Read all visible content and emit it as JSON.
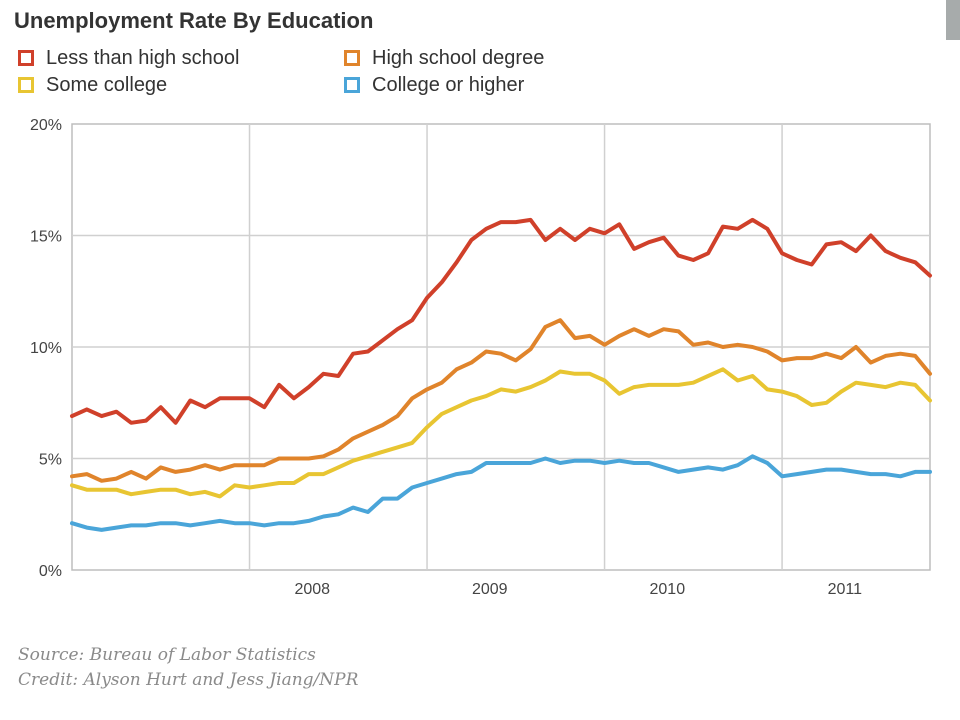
{
  "chart_data": {
    "type": "line",
    "title": "Unemployment Rate By Education",
    "xlabel": "",
    "ylabel": "",
    "x_start": "2007-01",
    "x_end": "2011-11",
    "x_frequency": "monthly",
    "x_ticks": [
      "2008",
      "2009",
      "2010",
      "2011"
    ],
    "y_ticks": [
      "0%",
      "5%",
      "10%",
      "15%",
      "20%"
    ],
    "ylim": [
      0,
      20
    ],
    "grid": true,
    "legend_placement": "top-left",
    "series": [
      {
        "name": "Less than high school",
        "color": "#d0402a",
        "values": [
          6.9,
          7.2,
          6.9,
          7.1,
          6.6,
          6.7,
          7.3,
          6.6,
          7.6,
          7.3,
          7.7,
          7.7,
          7.7,
          7.3,
          8.3,
          7.7,
          8.2,
          8.8,
          8.7,
          9.7,
          9.8,
          10.3,
          10.8,
          11.2,
          12.2,
          12.9,
          13.8,
          14.8,
          15.3,
          15.6,
          15.6,
          15.7,
          14.8,
          15.3,
          14.8,
          15.3,
          15.1,
          15.5,
          14.4,
          14.7,
          14.9,
          14.1,
          13.9,
          14.2,
          15.4,
          15.3,
          15.7,
          15.3,
          14.2,
          13.9,
          13.7,
          14.6,
          14.7,
          14.3,
          15.0,
          14.3,
          14.0,
          13.8,
          13.2
        ]
      },
      {
        "name": "High school degree",
        "color": "#e0842b",
        "values": [
          4.2,
          4.3,
          4.0,
          4.1,
          4.4,
          4.1,
          4.6,
          4.4,
          4.5,
          4.7,
          4.5,
          4.7,
          4.7,
          4.7,
          5.0,
          5.0,
          5.0,
          5.1,
          5.4,
          5.9,
          6.2,
          6.5,
          6.9,
          7.7,
          8.1,
          8.4,
          9.0,
          9.3,
          9.8,
          9.7,
          9.4,
          9.9,
          10.9,
          11.2,
          10.4,
          10.5,
          10.1,
          10.5,
          10.8,
          10.5,
          10.8,
          10.7,
          10.1,
          10.2,
          10.0,
          10.1,
          10.0,
          9.8,
          9.4,
          9.5,
          9.5,
          9.7,
          9.5,
          10.0,
          9.3,
          9.6,
          9.7,
          9.6,
          8.8
        ]
      },
      {
        "name": "Some college",
        "color": "#e8c532",
        "values": [
          3.8,
          3.6,
          3.6,
          3.6,
          3.4,
          3.5,
          3.6,
          3.6,
          3.4,
          3.5,
          3.3,
          3.8,
          3.7,
          3.8,
          3.9,
          3.9,
          4.3,
          4.3,
          4.6,
          4.9,
          5.1,
          5.3,
          5.5,
          5.7,
          6.4,
          7.0,
          7.3,
          7.6,
          7.8,
          8.1,
          8.0,
          8.2,
          8.5,
          8.9,
          8.8,
          8.8,
          8.5,
          7.9,
          8.2,
          8.3,
          8.3,
          8.3,
          8.4,
          8.7,
          9.0,
          8.5,
          8.7,
          8.1,
          8.0,
          7.8,
          7.4,
          7.5,
          8.0,
          8.4,
          8.3,
          8.2,
          8.4,
          8.3,
          7.6
        ]
      },
      {
        "name": "College or higher",
        "color": "#4aa5d9",
        "values": [
          2.1,
          1.9,
          1.8,
          1.9,
          2.0,
          2.0,
          2.1,
          2.1,
          2.0,
          2.1,
          2.2,
          2.1,
          2.1,
          2.0,
          2.1,
          2.1,
          2.2,
          2.4,
          2.5,
          2.8,
          2.6,
          3.2,
          3.2,
          3.7,
          3.9,
          4.1,
          4.3,
          4.4,
          4.8,
          4.8,
          4.8,
          4.8,
          5.0,
          4.8,
          4.9,
          4.9,
          4.8,
          4.9,
          4.8,
          4.8,
          4.6,
          4.4,
          4.5,
          4.6,
          4.5,
          4.7,
          5.1,
          4.8,
          4.2,
          4.3,
          4.4,
          4.5,
          4.5,
          4.4,
          4.3,
          4.3,
          4.2,
          4.4,
          4.4
        ]
      }
    ]
  },
  "footer": {
    "source": "Source: Bureau of Labor Statistics",
    "credit": "Credit: Alyson Hurt and Jess Jiang/NPR"
  }
}
